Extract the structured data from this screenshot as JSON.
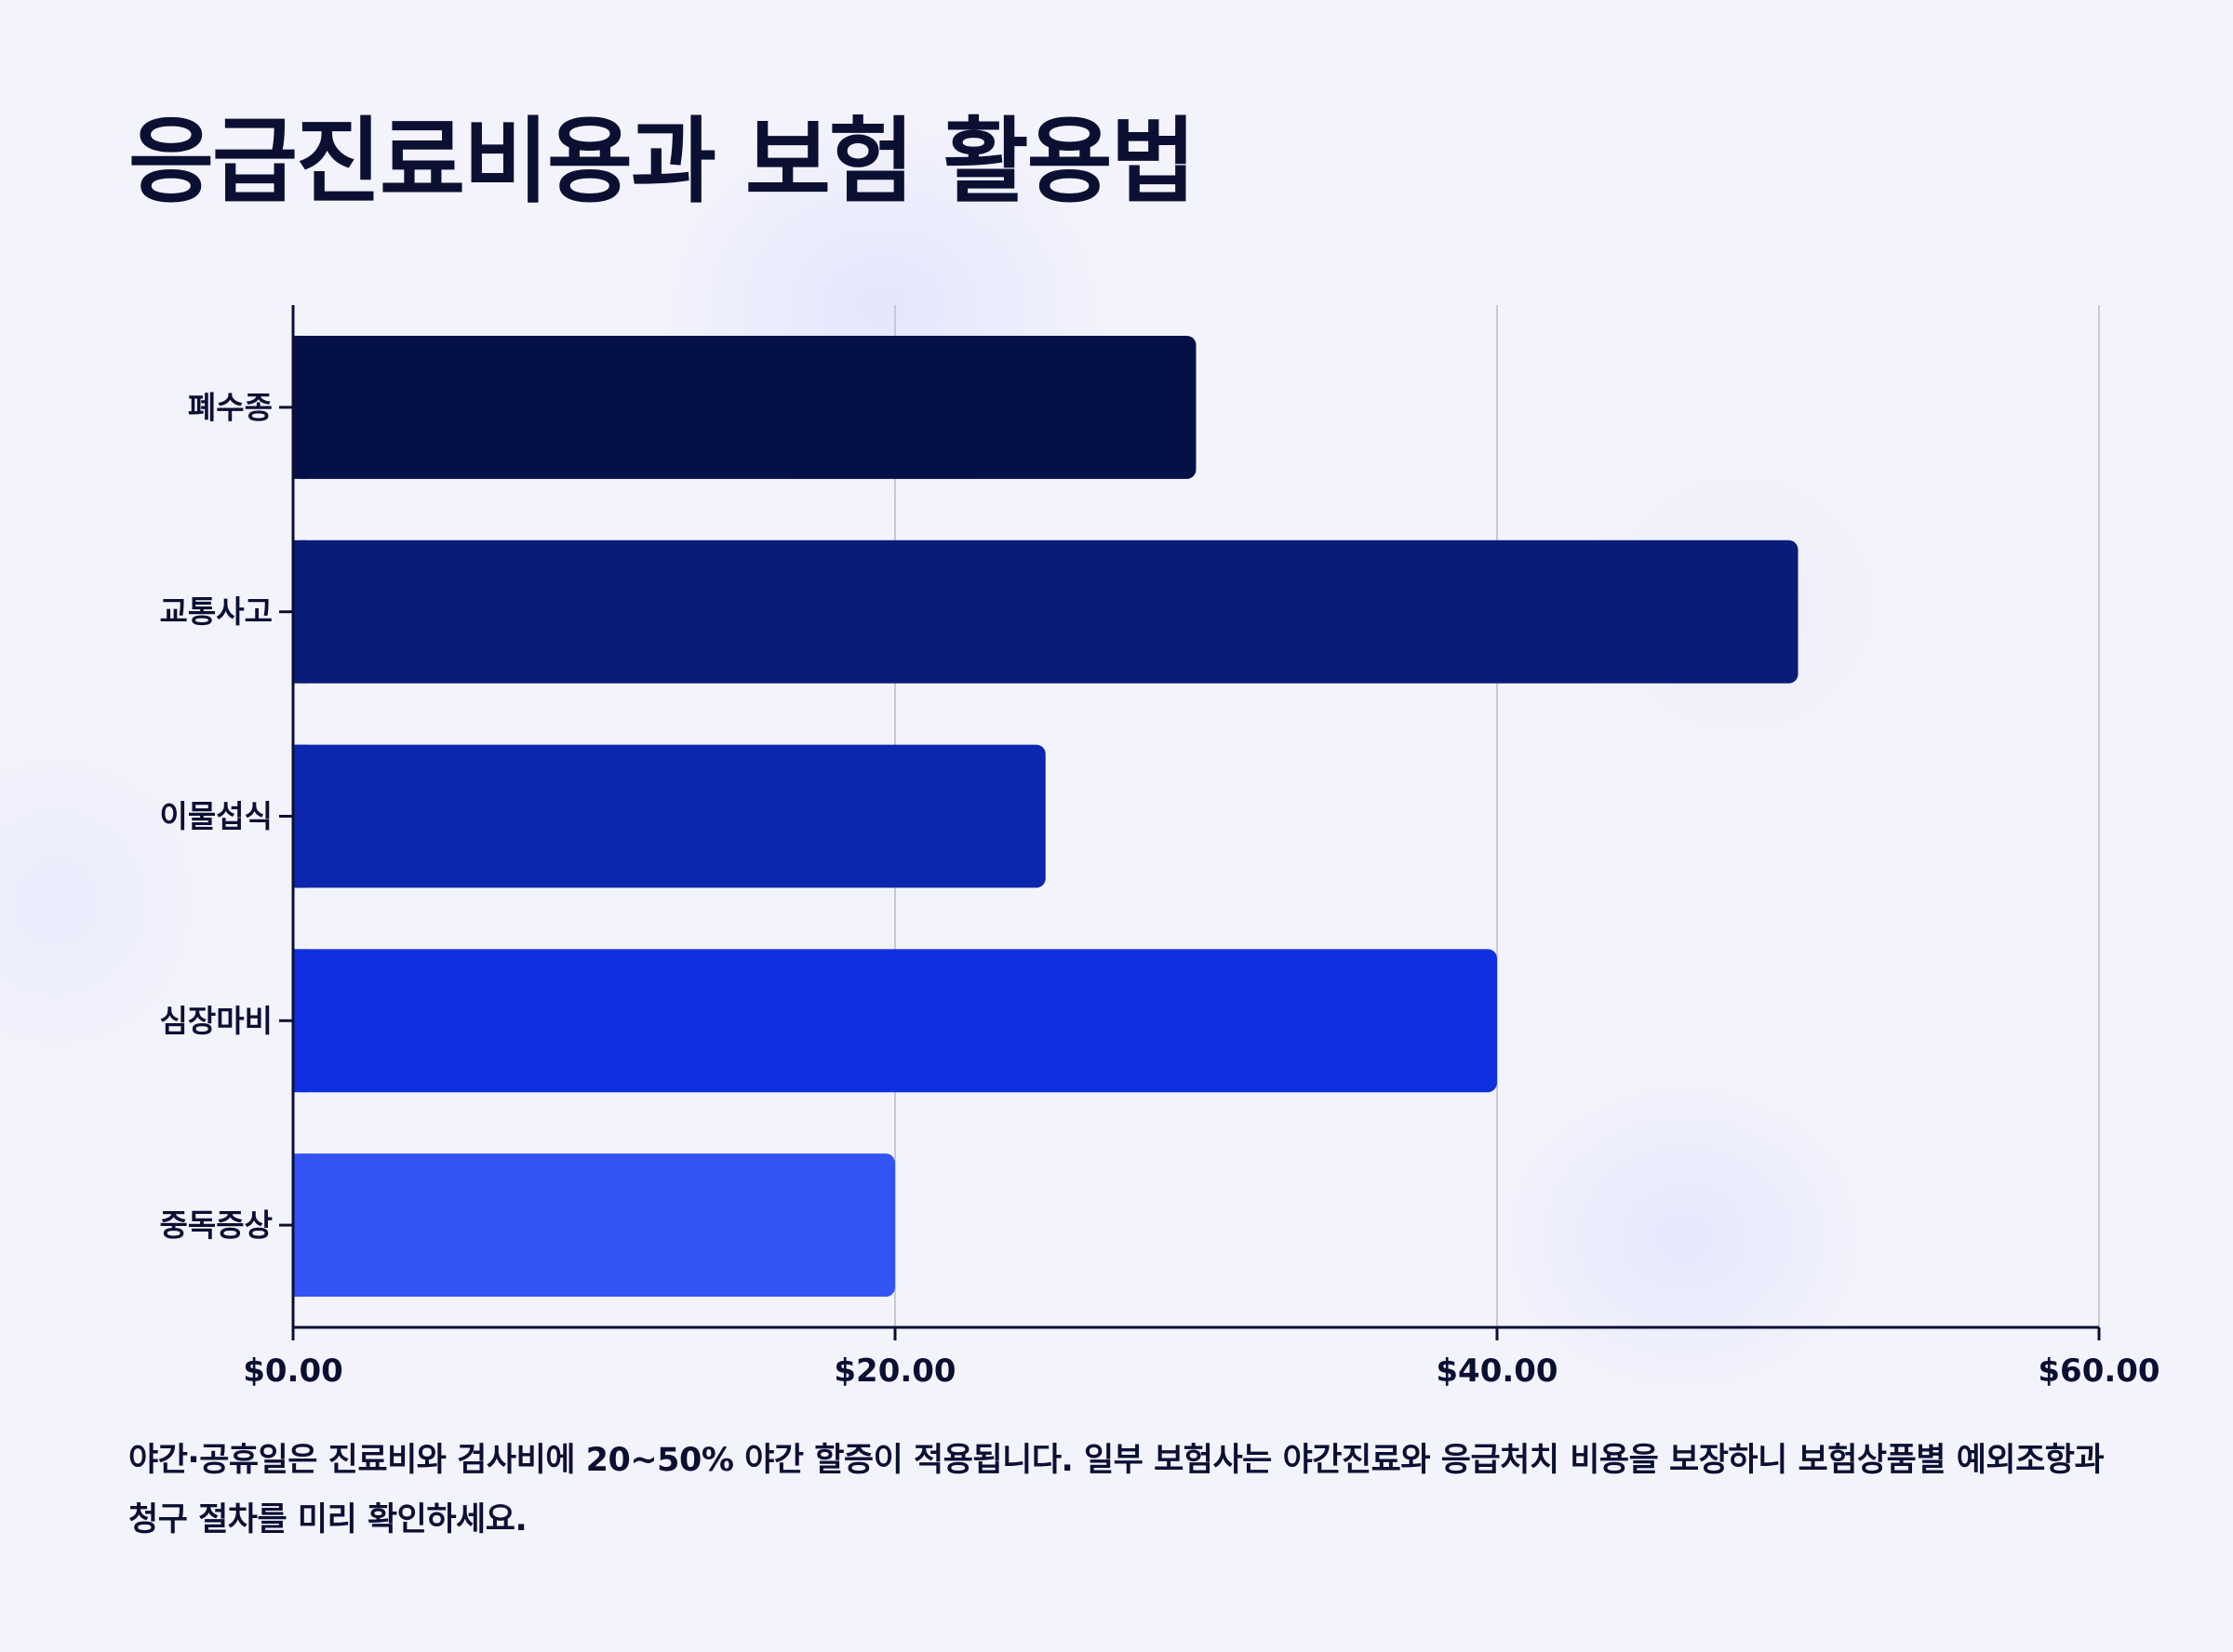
{
  "title": "응급진료비용과 보험 활용법",
  "note": "야간·공휴일은 진료비와 검사비에 20~50% 야간 할증이 적용됩니다. 일부 보험사는 야간진료와 응급처치 비용을 보장하니 보험상품별 예외조항과 청구 절차를 미리 확인하세요.",
  "chart_data": {
    "type": "bar",
    "orientation": "horizontal",
    "categories": [
      "폐수종",
      "교통사고",
      "이물섭식",
      "심장마비",
      "중독증상"
    ],
    "values": [
      30,
      50,
      25,
      40,
      20
    ],
    "colors": [
      "#041046",
      "#0a1c78",
      "#0b27ad",
      "#0f2fe0",
      "#3453f4"
    ],
    "title": "",
    "xlabel": "",
    "ylabel": "",
    "xlim": [
      0,
      60
    ],
    "xticks": [
      0,
      20,
      40,
      60
    ],
    "xtick_labels": [
      "$0.00",
      "$20.00",
      "$40.00",
      "$60.00"
    ],
    "grid": "vertical"
  }
}
